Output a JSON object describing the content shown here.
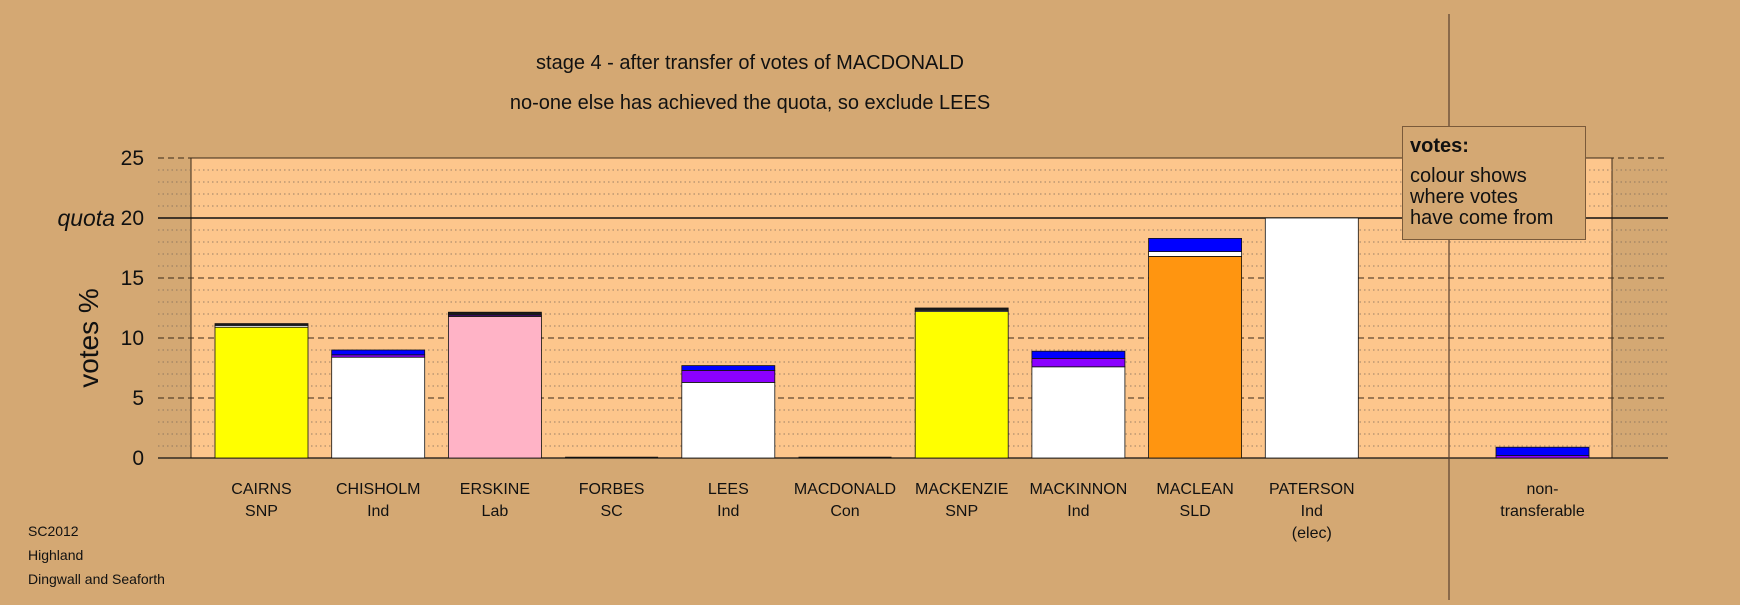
{
  "chart_data": {
    "type": "bar",
    "title": "stage 4 - after transfer of votes of MACDONALD",
    "subtitle": "no-one else has achieved the quota, so exclude LEES",
    "ylabel": "votes %",
    "quota_label": "quota",
    "quota": 20,
    "ylim": [
      0,
      25
    ],
    "yticks": [
      0,
      5,
      10,
      15,
      20,
      25
    ],
    "grid": true,
    "candidates": [
      {
        "name": "CAIRNS",
        "party": "SNP",
        "extra": "",
        "segments": [
          {
            "value": 10.9,
            "color": "#ffff00"
          },
          {
            "value": 0.15,
            "color": "#ffffff"
          },
          {
            "value": 0.15,
            "color": "#1a1a1a"
          }
        ]
      },
      {
        "name": "CHISHOLM",
        "party": "Ind",
        "extra": "",
        "segments": [
          {
            "value": 8.4,
            "color": "#ffffff"
          },
          {
            "value": 0.2,
            "color": "#8b00ff"
          },
          {
            "value": 0.4,
            "color": "#0000ff"
          }
        ]
      },
      {
        "name": "ERSKINE",
        "party": "Lab",
        "extra": "",
        "segments": [
          {
            "value": 11.8,
            "color": "#ffb3c6"
          },
          {
            "value": 0.1,
            "color": "#8b00ff"
          },
          {
            "value": 0.25,
            "color": "#1a1a1a"
          }
        ]
      },
      {
        "name": "FORBES",
        "party": "SC",
        "extra": "",
        "segments": [
          {
            "value": 0,
            "color": "#ffffff"
          }
        ]
      },
      {
        "name": "LEES",
        "party": "Ind",
        "extra": "",
        "segments": [
          {
            "value": 6.3,
            "color": "#ffffff"
          },
          {
            "value": 1.0,
            "color": "#8b00ff"
          },
          {
            "value": 0.4,
            "color": "#0000ff"
          }
        ]
      },
      {
        "name": "MACDONALD",
        "party": "Con",
        "extra": "",
        "segments": [
          {
            "value": 0,
            "color": "#0000ff"
          }
        ]
      },
      {
        "name": "MACKENZIE",
        "party": "SNP",
        "extra": "",
        "segments": [
          {
            "value": 12.2,
            "color": "#ffff00"
          },
          {
            "value": 0.1,
            "color": "#ffffff"
          },
          {
            "value": 0.2,
            "color": "#1a1a1a"
          }
        ]
      },
      {
        "name": "MACKINNON",
        "party": "Ind",
        "extra": "",
        "segments": [
          {
            "value": 7.6,
            "color": "#ffffff"
          },
          {
            "value": 0.7,
            "color": "#8b00ff"
          },
          {
            "value": 0.6,
            "color": "#0000ff"
          }
        ]
      },
      {
        "name": "MACLEAN",
        "party": "SLD",
        "extra": "",
        "segments": [
          {
            "value": 16.8,
            "color": "#ff9510"
          },
          {
            "value": 0.4,
            "color": "#ffffff"
          },
          {
            "value": 1.1,
            "color": "#0000ff"
          }
        ]
      },
      {
        "name": "PATERSON",
        "party": "Ind",
        "extra": "(elec)",
        "segments": [
          {
            "value": 20.0,
            "color": "#ffffff"
          }
        ]
      }
    ],
    "nontransferable": {
      "label_line1": "non-",
      "label_line2": "transferable",
      "segments": [
        {
          "value": 0.2,
          "color": "#8b00ff"
        },
        {
          "value": 0.7,
          "color": "#0000ff"
        }
      ]
    }
  },
  "legend": {
    "title": "votes:",
    "lines": [
      "colour shows",
      "where votes",
      "have come from"
    ]
  },
  "footer": {
    "line1": "SC2012",
    "line2": "Highland",
    "line3": "Dingwall and Seaforth"
  },
  "colors": {
    "background": "#d4a873",
    "plot_band": "#fdc68c",
    "ink": "#111111"
  }
}
